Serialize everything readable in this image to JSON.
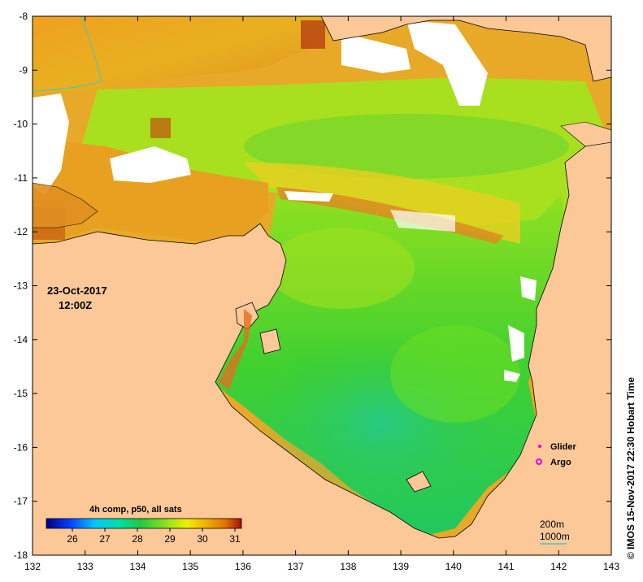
{
  "map": {
    "lon_range": [
      132,
      143
    ],
    "lat_range": [
      -18,
      -8
    ],
    "x_ticks": [
      "132",
      "133",
      "134",
      "135",
      "136",
      "137",
      "138",
      "139",
      "140",
      "141",
      "142",
      "143"
    ],
    "y_ticks": [
      "-8",
      "-9",
      "-10",
      "-11",
      "-12",
      "-13",
      "-14",
      "-15",
      "-16",
      "-17",
      "-18"
    ]
  },
  "timestamp": {
    "date": "23-Oct-2017",
    "time": "12:00Z"
  },
  "legend": {
    "glider": "Glider",
    "argo": "Argo",
    "glider_color": "#e600e6",
    "argo_color": "#e600e6"
  },
  "colorbar": {
    "title": "4h comp, p50, all sats",
    "tick_labels": [
      "26",
      "27",
      "28",
      "29",
      "30",
      "31"
    ],
    "range": [
      25.2,
      31.2
    ],
    "colors": [
      "#000080",
      "#0040ff",
      "#00c8ff",
      "#00e0a0",
      "#20c840",
      "#80e020",
      "#f0f000",
      "#f0b000",
      "#e07000",
      "#a01010"
    ]
  },
  "isobaths": {
    "line1": "200m",
    "line2": "1000m",
    "line_color": "#40c8c8"
  },
  "credit": "© IMOS 15-Nov-2017 22:30 Hobart Time",
  "colors": {
    "land": "#fcc898",
    "coast": "#000000",
    "nodata": "#ffffff"
  }
}
